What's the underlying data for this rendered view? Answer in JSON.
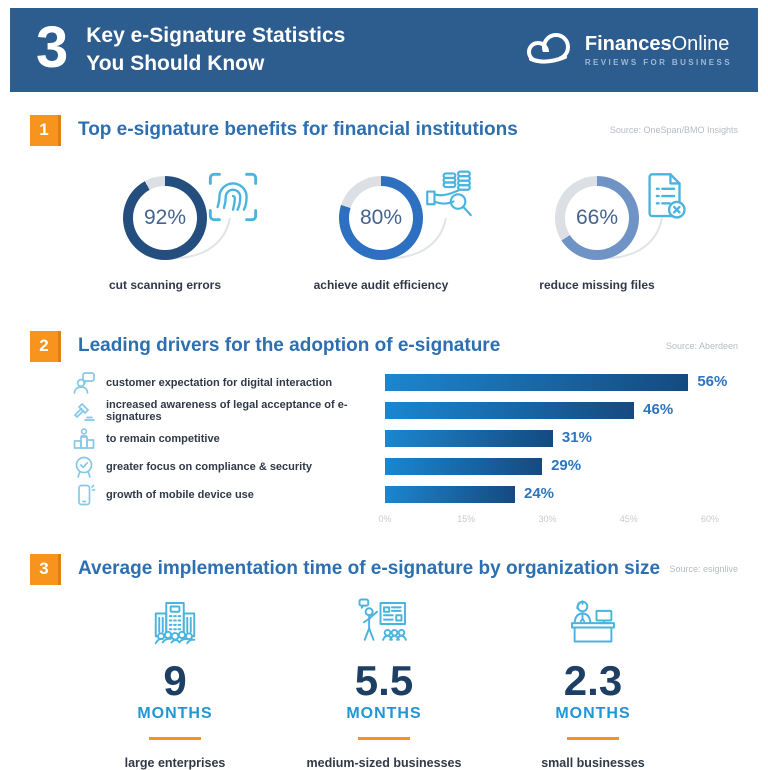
{
  "header": {
    "big_number": "3",
    "title_line1": "Key e-Signature Statistics",
    "title_line2": "You Should Know",
    "logo_bold": "Finances",
    "logo_regular": "Online",
    "logo_tagline": "REVIEWS FOR BUSINESS"
  },
  "colors": {
    "header_bg": "#2d5c8e",
    "accent_orange": "#f7941d",
    "section_title_blue": "#2e6fb0",
    "bar_gradient_left": "#1b86cf",
    "bar_gradient_right": "#154a80",
    "stat_number_navy": "#1d3f63",
    "stat_unit_blue": "#2196d4",
    "icon_blue": "#49b4de",
    "donut_track_gray": "#dcdfe4"
  },
  "sections": [
    {
      "badge": "1",
      "title": "Top e-signature benefits for financial institutions",
      "source": "Source: OneSpan/BMO Insights"
    },
    {
      "badge": "2",
      "title": "Leading drivers for the adoption of e-signature",
      "source": "Source: Aberdeen"
    },
    {
      "badge": "3",
      "title": "Average implementation time of e-signature by organization size",
      "source": "Source: esignlive"
    }
  ],
  "chart_data": [
    {
      "type": "pie",
      "subtype": "donut-multiples",
      "title": "Top e-signature benefits for financial institutions",
      "source": "Source: OneSpan/BMO Insights",
      "points": [
        {
          "label": "cut scanning errors",
          "value": 92,
          "display": "92%",
          "ring_color": "#234e7d",
          "icon": "fingerprint-scan-icon"
        },
        {
          "label": "achieve audit efficiency",
          "value": 80,
          "display": "80%",
          "ring_color": "#2d6fc0",
          "icon": "audit-efficiency-icon"
        },
        {
          "label": "reduce missing files",
          "value": 66,
          "display": "66%",
          "ring_color": "#7093c5",
          "icon": "missing-file-icon"
        }
      ]
    },
    {
      "type": "bar",
      "orientation": "horizontal",
      "title": "Leading drivers for the adoption of e-signature",
      "source": "Source: Aberdeen",
      "categories": [
        "customer expectation for digital interaction",
        "increased awareness of legal acceptance of e-signatures",
        "to remain competitive",
        "greater focus on compliance & security",
        "growth of mobile device use"
      ],
      "icons": [
        "customer-digital-icon",
        "legal-gavel-icon",
        "competitive-icon",
        "compliance-security-icon",
        "mobile-device-icon"
      ],
      "values": [
        56,
        46,
        31,
        29,
        24
      ],
      "value_labels": [
        "56%",
        "46%",
        "31%",
        "29%",
        "24%"
      ],
      "xlim": [
        0,
        60
      ],
      "ticks": [
        "0%",
        "15%",
        "30%",
        "45%",
        "60%"
      ],
      "grid": true
    },
    {
      "type": "table",
      "title": "Average implementation time of e-signature by organization size",
      "source": "Source: esignlive",
      "columns": [
        "value",
        "unit",
        "label"
      ],
      "rows": [
        {
          "value": "9",
          "unit": "MONTHS",
          "label": "large enterprises",
          "icon": "large-enterprise-icon"
        },
        {
          "value": "5.5",
          "unit": "MONTHS",
          "label": "medium-sized businesses",
          "icon": "medium-business-icon"
        },
        {
          "value": "2.3",
          "unit": "MONTHS",
          "label": "small businesses",
          "icon": "small-business-icon"
        }
      ]
    }
  ]
}
